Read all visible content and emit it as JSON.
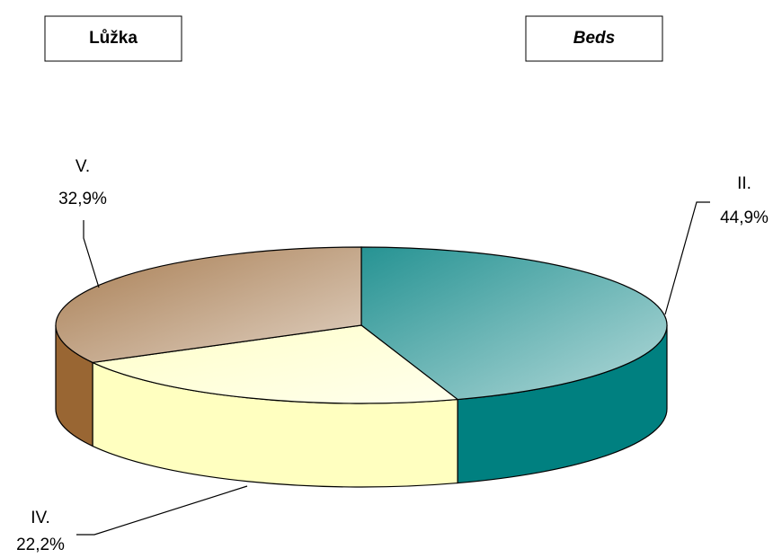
{
  "chart_data": {
    "type": "pie3d",
    "titles": [
      "Lůžka",
      "Beds"
    ],
    "categories": [
      "II.",
      "IV.",
      "V."
    ],
    "values": [
      44.9,
      22.2,
      32.9
    ],
    "value_labels": [
      "44,9%",
      "22,2%",
      "32,9%"
    ],
    "colors": [
      "#008080",
      "#ffffc0",
      "#996633"
    ]
  }
}
